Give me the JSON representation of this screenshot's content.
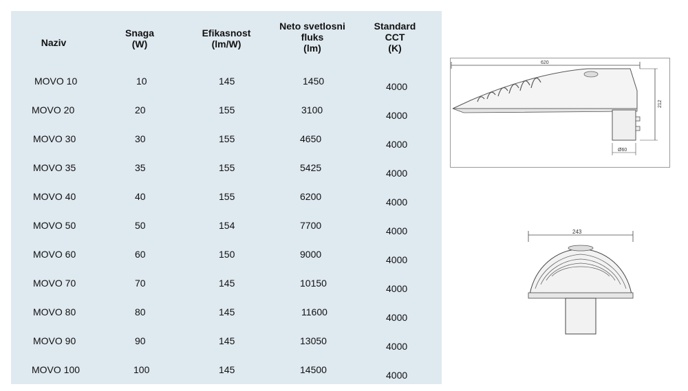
{
  "headers": {
    "naziv": "Naziv",
    "snaga": [
      "Snaga",
      "(W)"
    ],
    "efikasnost": [
      "Efikasnost",
      "(lm/W)"
    ],
    "fluks": [
      "Neto svetlosni",
      "fluks",
      "(lm)"
    ],
    "cct": [
      "Standard",
      "CCT",
      "(K)"
    ]
  },
  "rows": [
    {
      "naziv": "MOVO 10",
      "snaga": "10",
      "efikasnost": "145",
      "fluks": "1450",
      "cct": "4000"
    },
    {
      "naziv": "MOVO 20",
      "snaga": "20",
      "efikasnost": "155",
      "fluks": "3100",
      "cct": "4000"
    },
    {
      "naziv": "MOVO 30",
      "snaga": "30",
      "efikasnost": "155",
      "fluks": "4650",
      "cct": "4000"
    },
    {
      "naziv": "MOVO 35",
      "snaga": "35",
      "efikasnost": "155",
      "fluks": "5425",
      "cct": "4000"
    },
    {
      "naziv": "MOVO 40",
      "snaga": "40",
      "efikasnost": "155",
      "fluks": "6200",
      "cct": "4000"
    },
    {
      "naziv": "MOVO 50",
      "snaga": "50",
      "efikasnost": "154",
      "fluks": "7700",
      "cct": "4000"
    },
    {
      "naziv": "MOVO 60",
      "snaga": "60",
      "efikasnost": "150",
      "fluks": "9000",
      "cct": "4000"
    },
    {
      "naziv": "MOVO 70",
      "snaga": "70",
      "efikasnost": "145",
      "fluks": "10150",
      "cct": "4000"
    },
    {
      "naziv": "MOVO 80",
      "snaga": "80",
      "efikasnost": "145",
      "fluks": "11600",
      "cct": "4000"
    },
    {
      "naziv": "MOVO 90",
      "snaga": "90",
      "efikasnost": "145",
      "fluks": "13050",
      "cct": "4000"
    },
    {
      "naziv": "MOVO 100",
      "snaga": "100",
      "efikasnost": "145",
      "fluks": "14500",
      "cct": "4000"
    }
  ],
  "side_drawing": {
    "length": "620",
    "height": "212",
    "diameter": "Ø60"
  },
  "front_drawing": {
    "width": "243"
  }
}
